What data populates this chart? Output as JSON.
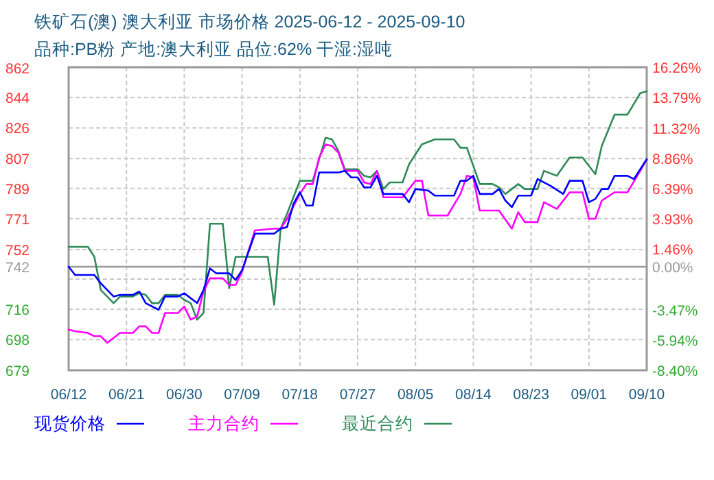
{
  "chart_data": {
    "type": "line",
    "title": "铁矿石(澳) 澳大利亚 市场价格 2025-06-12 - 2025-09-10",
    "subtitle": "品种:PB粉 产地:澳大利亚 品位:62% 干湿:湿吨",
    "xlim": [
      "2025-06-12",
      "2025-09-10"
    ],
    "xticks": [
      {
        "value": "2025-06-12",
        "label": "06/12"
      },
      {
        "value": "2025-06-21",
        "label": "06/21"
      },
      {
        "value": "2025-06-30",
        "label": "06/30"
      },
      {
        "value": "2025-07-09",
        "label": "07/09"
      },
      {
        "value": "2025-07-18",
        "label": "07/18"
      },
      {
        "value": "2025-07-27",
        "label": "07/27"
      },
      {
        "value": "2025-08-05",
        "label": "08/05"
      },
      {
        "value": "2025-08-14",
        "label": "08/14"
      },
      {
        "value": "2025-08-23",
        "label": "08/23"
      },
      {
        "value": "2025-09-01",
        "label": "09/01"
      },
      {
        "value": "2025-09-10",
        "label": "09/10"
      }
    ],
    "ylim": [
      679.4,
      862.65
    ],
    "yticks": [
      {
        "value": 862.4,
        "label": "862"
      },
      {
        "value": 844.32,
        "label": "844"
      },
      {
        "value": 825.99,
        "label": "826"
      },
      {
        "value": 807.4,
        "label": "807"
      },
      {
        "value": 789.41,
        "label": "789"
      },
      {
        "value": 771.16,
        "label": "771"
      },
      {
        "value": 752.4,
        "label": "752"
      },
      {
        "value": 742,
        "label": "742"
      },
      {
        "value": 734.55,
        "label": null
      },
      {
        "value": 716.25,
        "label": "716"
      },
      {
        "value": 697.92,
        "label": "698"
      },
      {
        "value": 679.4,
        "label": "679"
      }
    ],
    "y2lim": [
      -8.4,
      16.26
    ],
    "y2ticks": [
      {
        "value": 16.26,
        "label": "16.26%"
      },
      {
        "value": 13.79,
        "label": "13.79%"
      },
      {
        "value": 11.32,
        "label": "11.32%"
      },
      {
        "value": 8.86,
        "label": "8.86%"
      },
      {
        "value": 6.39,
        "label": "6.39%"
      },
      {
        "value": 3.93,
        "label": "3.93%"
      },
      {
        "value": 1.46,
        "label": "1.46%"
      },
      {
        "value": 0,
        "label": "0.00%"
      },
      {
        "value": -3.47,
        "label": "-3.47%"
      },
      {
        "value": -5.94,
        "label": "-5.94%"
      },
      {
        "value": -8.4,
        "label": "-8.40%"
      }
    ],
    "ref_lines": [
      {
        "axis": "y",
        "value": 742,
        "color": "#999999"
      }
    ],
    "grid": true,
    "legend": "bottom",
    "series": [
      {
        "name": "现货价格",
        "color": "#0000ff",
        "x": [
          "2025-06-12",
          "2025-06-13",
          "2025-06-16",
          "2025-06-17",
          "2025-06-19",
          "2025-06-20",
          "2025-06-22",
          "2025-06-23",
          "2025-06-24",
          "2025-06-26",
          "2025-06-27",
          "2025-06-29",
          "2025-06-30",
          "2025-07-02",
          "2025-07-03",
          "2025-07-04",
          "2025-07-05",
          "2025-07-07",
          "2025-07-08",
          "2025-07-09",
          "2025-07-11",
          "2025-07-14",
          "2025-07-15",
          "2025-07-16",
          "2025-07-17",
          "2025-07-18",
          "2025-07-19",
          "2025-07-20",
          "2025-07-21",
          "2025-07-24",
          "2025-07-25",
          "2025-07-26",
          "2025-07-27",
          "2025-07-28",
          "2025-07-29",
          "2025-07-30",
          "2025-07-31",
          "2025-08-03",
          "2025-08-04",
          "2025-08-05",
          "2025-08-07",
          "2025-08-08",
          "2025-08-11",
          "2025-08-12",
          "2025-08-13",
          "2025-08-14",
          "2025-08-15",
          "2025-08-17",
          "2025-08-18",
          "2025-08-19",
          "2025-08-20",
          "2025-08-21",
          "2025-08-23",
          "2025-08-24",
          "2025-08-26",
          "2025-08-28",
          "2025-08-29",
          "2025-08-31",
          "2025-09-01",
          "2025-09-02",
          "2025-09-03",
          "2025-09-04",
          "2025-09-05",
          "2025-09-07",
          "2025-09-08",
          "2025-09-10"
        ],
        "values": [
          742,
          737,
          737,
          732,
          724,
          725,
          725,
          727,
          720,
          716,
          724,
          724,
          726,
          720,
          728,
          741,
          738,
          738,
          734,
          740,
          762,
          762,
          765,
          766,
          780,
          787,
          779,
          779,
          799,
          799,
          800,
          796,
          796,
          790,
          790,
          797,
          786,
          786,
          781,
          789,
          788,
          785,
          785,
          794,
          794,
          797,
          786,
          786,
          789,
          782,
          778,
          785,
          785,
          795,
          791,
          786,
          794,
          794,
          781,
          783,
          789,
          789,
          797,
          797,
          795,
          807
        ]
      },
      {
        "name": "主力合约",
        "color": "#ff00ff",
        "x": [
          "2025-06-12",
          "2025-06-13",
          "2025-06-15",
          "2025-06-16",
          "2025-06-17",
          "2025-06-18",
          "2025-06-20",
          "2025-06-22",
          "2025-06-23",
          "2025-06-24",
          "2025-06-25",
          "2025-06-26",
          "2025-06-27",
          "2025-06-29",
          "2025-06-30",
          "2025-07-01",
          "2025-07-02",
          "2025-07-03",
          "2025-07-04",
          "2025-07-06",
          "2025-07-07",
          "2025-07-08",
          "2025-07-09",
          "2025-07-11",
          "2025-07-14",
          "2025-07-15",
          "2025-07-16",
          "2025-07-18",
          "2025-07-19",
          "2025-07-20",
          "2025-07-21",
          "2025-07-22",
          "2025-07-23",
          "2025-07-24",
          "2025-07-25",
          "2025-07-27",
          "2025-07-28",
          "2025-07-29",
          "2025-07-30",
          "2025-07-31",
          "2025-08-03",
          "2025-08-05",
          "2025-08-06",
          "2025-08-07",
          "2025-08-10",
          "2025-08-12",
          "2025-08-13",
          "2025-08-14",
          "2025-08-15",
          "2025-08-18",
          "2025-08-20",
          "2025-08-21",
          "2025-08-22",
          "2025-08-24",
          "2025-08-25",
          "2025-08-27",
          "2025-08-29",
          "2025-08-31",
          "2025-09-01",
          "2025-09-02",
          "2025-09-03",
          "2025-09-05",
          "2025-09-07",
          "2025-09-09",
          "2025-09-10"
        ],
        "values": [
          704,
          703,
          702,
          700,
          700,
          696,
          702,
          702,
          706,
          706,
          702,
          702,
          714,
          714,
          718,
          710,
          712,
          727,
          735,
          735,
          731,
          731,
          739,
          764,
          765,
          765,
          771,
          786,
          792,
          792,
          808,
          816,
          815,
          811,
          800,
          800,
          793,
          792,
          800,
          784,
          784,
          794,
          794,
          773,
          773,
          786,
          797,
          796,
          776,
          776,
          765,
          775,
          769,
          769,
          781,
          777,
          787,
          787,
          771,
          771,
          782,
          787,
          787,
          800,
          807
        ]
      },
      {
        "name": "最近合约",
        "color": "#2e8b57",
        "x": [
          "2025-06-12",
          "2025-06-15",
          "2025-06-16",
          "2025-06-17",
          "2025-06-19",
          "2025-06-20",
          "2025-06-22",
          "2025-06-23",
          "2025-06-24",
          "2025-06-25",
          "2025-06-26",
          "2025-06-27",
          "2025-06-29",
          "2025-06-30",
          "2025-07-01",
          "2025-07-02",
          "2025-07-03",
          "2025-07-04",
          "2025-07-06",
          "2025-07-07",
          "2025-07-08",
          "2025-07-13",
          "2025-07-14",
          "2025-07-15",
          "2025-07-16",
          "2025-07-18",
          "2025-07-20",
          "2025-07-22",
          "2025-07-23",
          "2025-07-24",
          "2025-07-25",
          "2025-07-27",
          "2025-07-28",
          "2025-07-29",
          "2025-07-30",
          "2025-07-31",
          "2025-08-01",
          "2025-08-03",
          "2025-08-04",
          "2025-08-06",
          "2025-08-08",
          "2025-08-11",
          "2025-08-12",
          "2025-08-13",
          "2025-08-15",
          "2025-08-17",
          "2025-08-18",
          "2025-08-19",
          "2025-08-21",
          "2025-08-22",
          "2025-08-24",
          "2025-08-25",
          "2025-08-27",
          "2025-08-29",
          "2025-08-31",
          "2025-09-02",
          "2025-09-03",
          "2025-09-05",
          "2025-09-07",
          "2025-09-09",
          "2025-09-10"
        ],
        "values": [
          754,
          754,
          748,
          728,
          720,
          724,
          724,
          726,
          725,
          720,
          720,
          725,
          725,
          722,
          720,
          710,
          714,
          768,
          768,
          729,
          748,
          748,
          719,
          765,
          774,
          794,
          794,
          820,
          819,
          812,
          801,
          801,
          797,
          796,
          800,
          789,
          793,
          793,
          804,
          816,
          819,
          819,
          814,
          814,
          792,
          792,
          790,
          786,
          792,
          789,
          789,
          800,
          797,
          808,
          808,
          798,
          815,
          834,
          834,
          847,
          848
        ]
      }
    ]
  }
}
